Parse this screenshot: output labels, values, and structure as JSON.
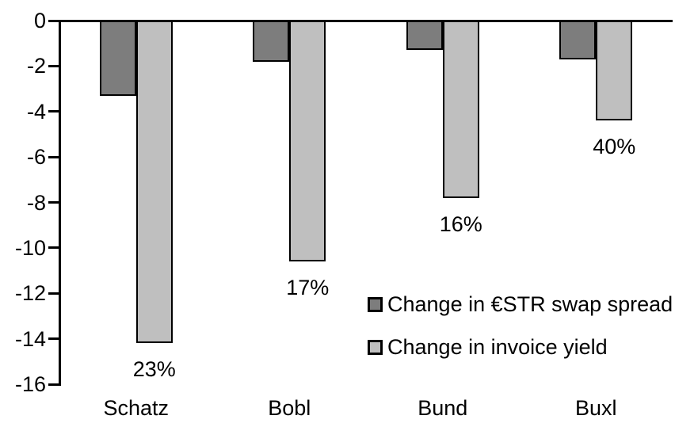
{
  "chart_data": {
    "type": "bar",
    "orientation": "vertical-grouped",
    "title": "",
    "xlabel": "",
    "ylabel": "",
    "categories": [
      "Schatz",
      "Bobl",
      "Bund",
      "Buxl"
    ],
    "series": [
      {
        "name": "Change in €STR swap spread",
        "color": "#7d7d7d",
        "values": [
          -3.3,
          -1.8,
          -1.3,
          -1.7
        ]
      },
      {
        "name": "Change in invoice yield",
        "color": "#bfbfbf",
        "values": [
          -14.2,
          -10.6,
          -7.8,
          -4.4
        ],
        "point_labels": [
          "23%",
          "17%",
          "16%",
          "40%"
        ]
      }
    ],
    "ylim": [
      -16,
      0
    ],
    "ytick_labels": [
      "0",
      "-2",
      "-4",
      "-6",
      "-8",
      "-10",
      "-12",
      "-14",
      "-16"
    ],
    "grid": false,
    "bar_border_color": "#000000",
    "axis_color": "#000000",
    "legend_position": "inside-middle-right"
  }
}
